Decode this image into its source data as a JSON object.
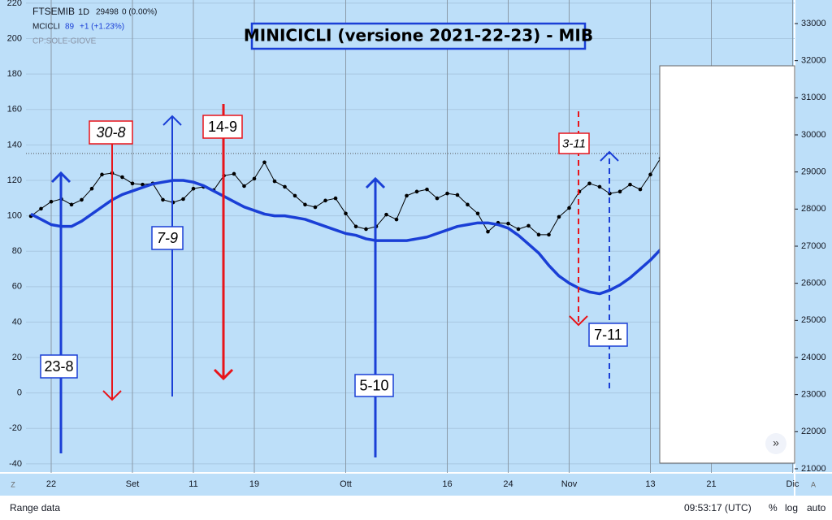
{
  "chart_data": {
    "type": "line",
    "title": "MINICICLI (versione 2021-22-23) - MIB",
    "interval": "1D",
    "price_line": 29498,
    "change": "0 (0.00%)",
    "indicator_value": "89",
    "indicator_change": "+1 (+1.23%)",
    "overlay": "CP:SOLE-GIOVE",
    "x": [
      0,
      1,
      2,
      3,
      4,
      5,
      6,
      7,
      8,
      9,
      10,
      11,
      12,
      13,
      14,
      15,
      16,
      17,
      18,
      19,
      20,
      21,
      22,
      23,
      24,
      25,
      26,
      27,
      28,
      29,
      30,
      31,
      32,
      33,
      34,
      35,
      36,
      37,
      38,
      39,
      40,
      41,
      42,
      43,
      44,
      45,
      46,
      47,
      48,
      49,
      50,
      51,
      52,
      53,
      54,
      55,
      56,
      57,
      58,
      59,
      60,
      61,
      62
    ],
    "series": [
      {
        "name": "FTSEMIB",
        "color": "#000000",
        "axis": "y2",
        "values": [
          27810,
          28010,
          28200,
          28270,
          28120,
          28250,
          28550,
          28930,
          28970,
          28860,
          28690,
          28660,
          28690,
          28250,
          28180,
          28270,
          28550,
          28600,
          28510,
          28900,
          28950,
          28620,
          28820,
          29260,
          28750,
          28600,
          28360,
          28120,
          28050,
          28230,
          28290,
          27880,
          27530,
          27460,
          27530,
          27850,
          27720,
          28360,
          28470,
          28530,
          28290,
          28420,
          28380,
          28120,
          27880,
          27390,
          27630,
          27610,
          27460,
          27550,
          27310,
          27310,
          27790,
          28030,
          28470,
          28690,
          28600,
          28420,
          28470,
          28660,
          28530,
          28930,
          29370
        ]
      },
      {
        "name": "MCICLI",
        "color": "#1a3fd6",
        "values": [
          101,
          98,
          95,
          94,
          94,
          97,
          101,
          105,
          109,
          112,
          114,
          116,
          118,
          119,
          120,
          120,
          119,
          117,
          114,
          111,
          108,
          105,
          103,
          101,
          100,
          100,
          99,
          98,
          96,
          94,
          92,
          90,
          89,
          87,
          86,
          86,
          86,
          86,
          87,
          88,
          90,
          92,
          94,
          95,
          96,
          96,
          95,
          93,
          89,
          84,
          79,
          72,
          66,
          62,
          59,
          57,
          56,
          58,
          61,
          65,
          70,
          75,
          81
        ]
      }
    ],
    "xlim": [
      -0.48,
      75.2
    ],
    "xticks": [
      {
        "value": 2,
        "label": "22"
      },
      {
        "value": 10,
        "label": "Set"
      },
      {
        "value": 16,
        "label": "11"
      },
      {
        "value": 22,
        "label": "19"
      },
      {
        "value": 31,
        "label": "Ott"
      },
      {
        "value": 41,
        "label": "16"
      },
      {
        "value": 47,
        "label": "24"
      },
      {
        "value": 53,
        "label": "Nov"
      },
      {
        "value": 61,
        "label": "13"
      },
      {
        "value": 67,
        "label": "21"
      },
      {
        "value": 75,
        "label": "Dic"
      }
    ],
    "ylim": [
      -45.1,
      221.8
    ],
    "yticks": [
      -40,
      -20,
      0,
      20,
      40,
      60,
      80,
      100,
      120,
      140,
      160,
      180,
      200,
      220
    ],
    "y2lim": [
      20890,
      33635
    ],
    "y2ticks": [
      21000,
      22000,
      23000,
      24000,
      25000,
      26000,
      27000,
      28000,
      29000,
      30000,
      31000,
      32000,
      33000
    ],
    "grid": true,
    "annotations": [
      "23-8",
      "30-8",
      "7-9",
      "14-9",
      "5-10",
      "3-11",
      "7-11"
    ]
  },
  "ui": {
    "corner_left": "Z",
    "corner_right": "A",
    "range": "Range data",
    "time": "09:53:17 (UTC)",
    "percent": "%",
    "log": "log",
    "auto": "auto"
  }
}
